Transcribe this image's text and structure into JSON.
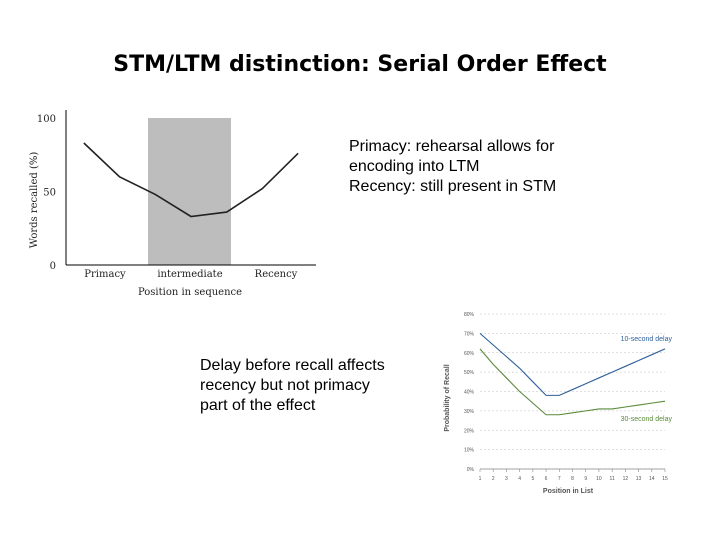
{
  "slide": {
    "title": "STM/LTM distinction: Serial Order Effect",
    "note_primacy_recency": [
      "Primacy: rehearsal allows for",
      "encoding into LTM",
      "Recency: still present in STM"
    ],
    "note_delay": [
      "Delay before recall affects",
      "recency but not primacy",
      "part of the effect"
    ]
  },
  "chart_data": [
    {
      "type": "line",
      "title": "",
      "ylabel": "Words recalled (%)",
      "xlabel": "Position in sequence",
      "ylim": [
        0,
        100
      ],
      "yticks": [
        0,
        50,
        100
      ],
      "region_labels": [
        "Primacy",
        "intermediate",
        "Recency"
      ],
      "shaded_region": "intermediate",
      "shade_color": "#bdbdbd",
      "line_color": "#222222",
      "x": [
        1,
        2,
        3,
        4,
        5,
        6,
        7
      ],
      "xlim": [
        0.5,
        7.5
      ],
      "series": [
        {
          "values": [
            83,
            60,
            48,
            33,
            36,
            52,
            76
          ]
        }
      ]
    },
    {
      "type": "line",
      "title": "",
      "ylabel": "Probability of Recall",
      "xlabel": "Position in List",
      "ylim": [
        0,
        80
      ],
      "yticks": [
        "0%",
        "10%",
        "20%",
        "30%",
        "40%",
        "50%",
        "60%",
        "70%",
        "80%"
      ],
      "x": [
        1,
        2,
        3,
        4,
        5,
        6,
        7,
        8,
        9,
        10,
        11,
        12,
        13,
        14,
        15
      ],
      "series": [
        {
          "name": "10-second delay",
          "color": "#2e5f99",
          "values": [
            70,
            64,
            58,
            52,
            45,
            38,
            38,
            41,
            44,
            47,
            50,
            53,
            56,
            59,
            62
          ]
        },
        {
          "name": "30-second delay",
          "color": "#5a8a3a",
          "values": [
            62,
            54,
            47,
            40,
            34,
            28,
            28,
            29,
            30,
            31,
            31,
            32,
            33,
            34,
            35
          ]
        }
      ]
    }
  ]
}
